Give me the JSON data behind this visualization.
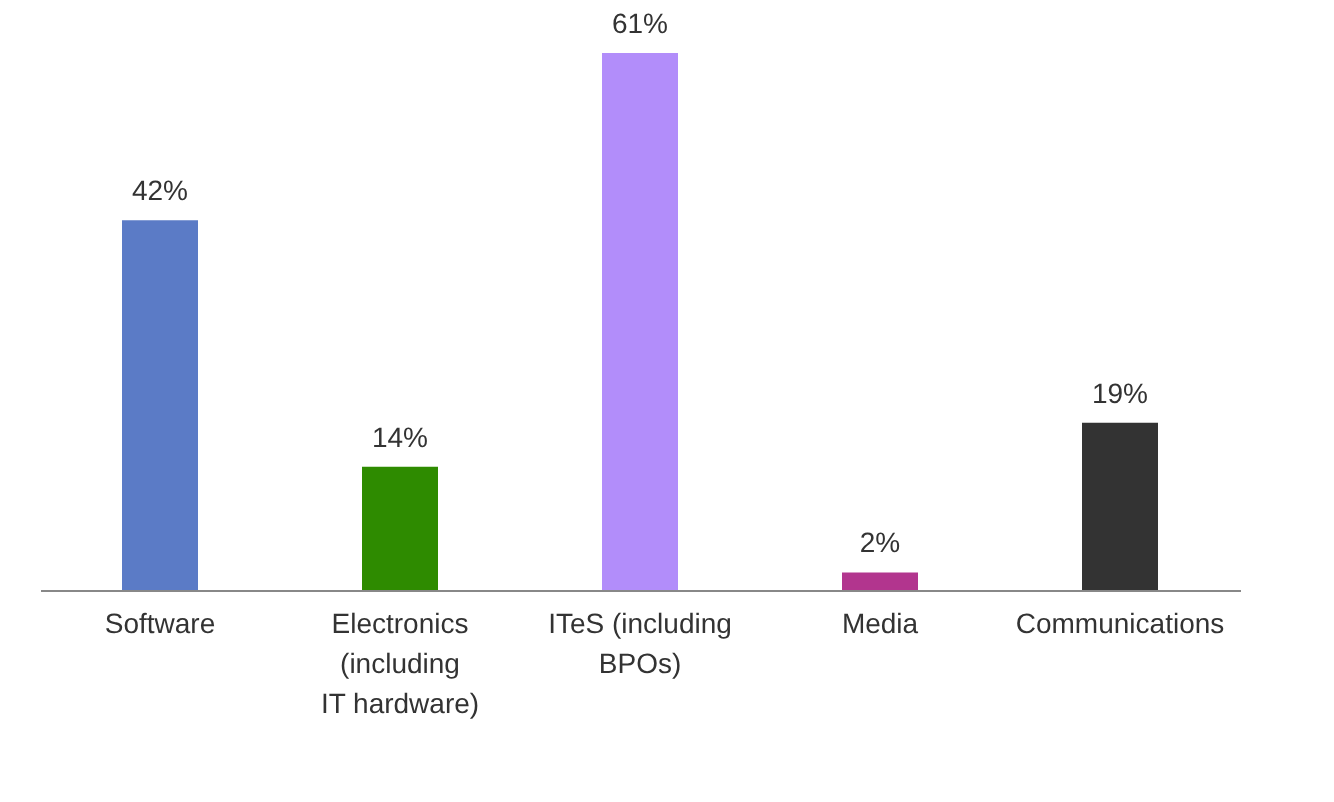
{
  "chart_data": {
    "type": "bar",
    "categories": [
      "Software",
      "Electronics\n(including\nIT hardware)",
      "ITeS (including\nBPOs)",
      "Media",
      "Communications"
    ],
    "values": [
      42,
      14,
      61,
      2,
      19
    ],
    "colors": [
      "#5b7bc6",
      "#2e8b00",
      "#b28dfa",
      "#b2358e",
      "#333333"
    ],
    "value_labels": [
      "42%",
      "14%",
      "61%",
      "2%",
      "19%"
    ]
  }
}
